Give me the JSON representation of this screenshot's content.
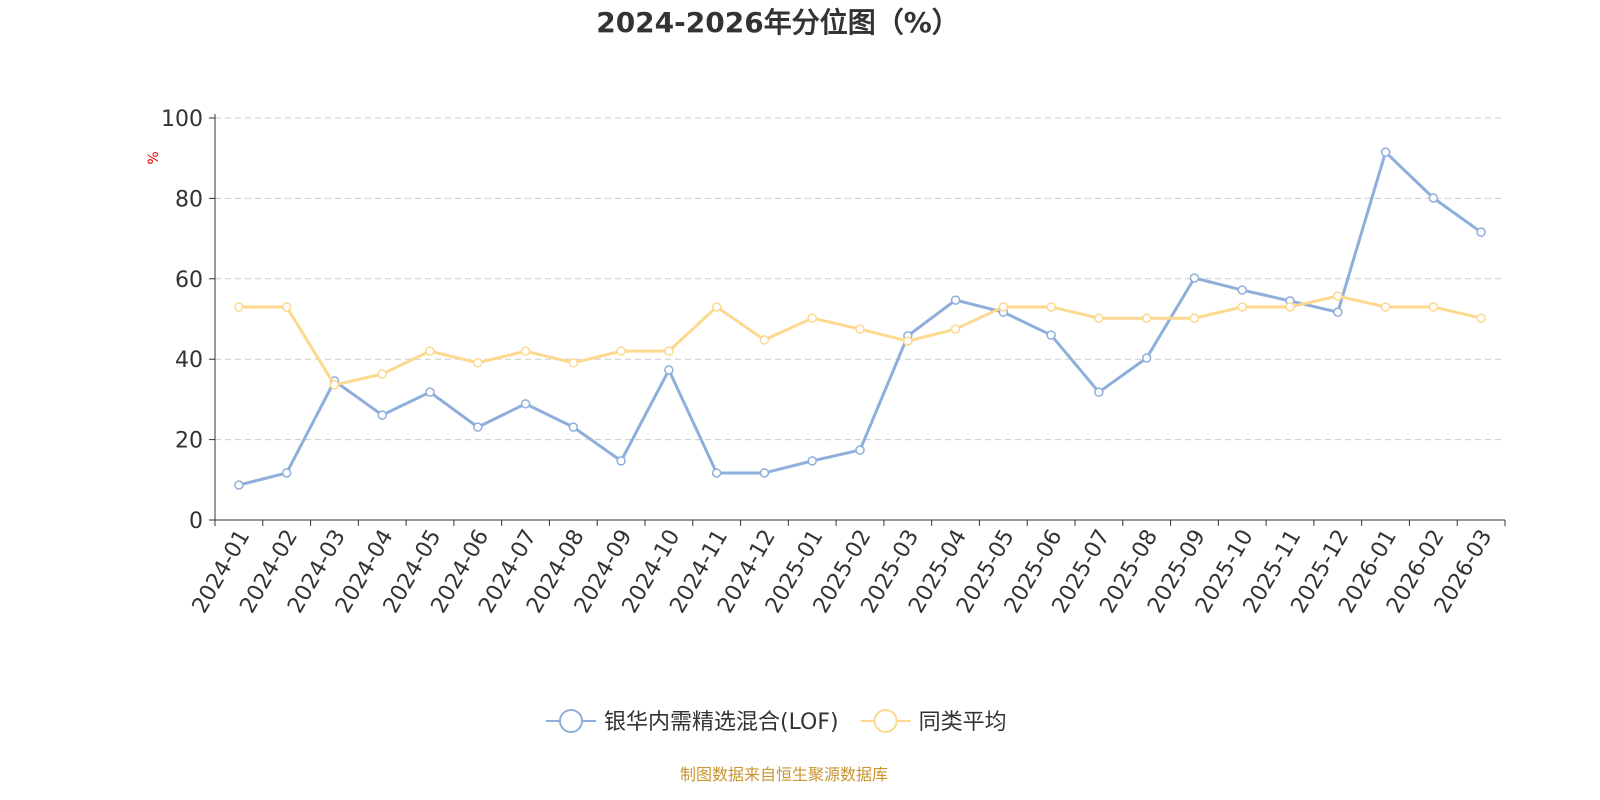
{
  "chart_data": {
    "type": "line",
    "title": "2024-2026年分位图（%）",
    "ylabel": "%",
    "xlabel": "",
    "ylim": [
      0,
      100
    ],
    "yticks": [
      0,
      20,
      40,
      60,
      80,
      100
    ],
    "grid": true,
    "legend_position": "bottom",
    "categories": [
      "2024-01",
      "2024-02",
      "2024-03",
      "2024-04",
      "2024-05",
      "2024-06",
      "2024-07",
      "2024-08",
      "2024-09",
      "2024-10",
      "2024-11",
      "2024-12",
      "2025-01",
      "2025-02",
      "2025-03",
      "2025-04",
      "2025-05",
      "2025-06",
      "2025-07",
      "2025-08",
      "2025-09",
      "2025-10",
      "2025-11",
      "2025-12",
      "2026-01",
      "2026-02",
      "2026-03"
    ],
    "series": [
      {
        "name": "银华内需精选混合(LOF)",
        "color": "#8eaedb",
        "values": [
          8.7,
          11.7,
          34.6,
          26.1,
          31.8,
          23.1,
          28.9,
          23.1,
          14.7,
          37.3,
          11.7,
          11.7,
          14.7,
          17.4,
          45.8,
          54.7,
          51.7,
          46.0,
          31.8,
          40.3,
          60.2,
          57.2,
          54.5,
          51.7,
          91.5,
          80.1,
          71.6
        ]
      },
      {
        "name": "同类平均",
        "color": "#fdd88f",
        "values": [
          53.0,
          53.0,
          33.6,
          36.3,
          42.0,
          39.1,
          42.0,
          39.1,
          42.0,
          42.0,
          53.0,
          44.8,
          50.2,
          47.5,
          44.5,
          47.5,
          53.0,
          53.0,
          50.2,
          50.2,
          50.2,
          53.0,
          53.0,
          55.7,
          53.0,
          53.0,
          50.2
        ]
      }
    ],
    "source": "制图数据来自恒生聚源数据库"
  }
}
